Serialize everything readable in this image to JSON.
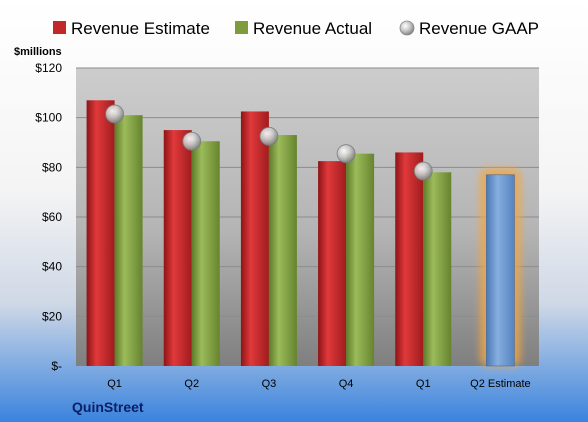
{
  "company": "QuinStreet",
  "colors": {
    "estimate": "#C0282A",
    "actual": "#7E9C3E",
    "gaap": "#B8B8B8",
    "estimate_bar": "#6B97CF",
    "highlight": "#F4A640"
  },
  "chart_data": {
    "type": "bar",
    "ylabel": "$millions",
    "ylim": [
      0,
      120
    ],
    "yticks": [
      {
        "value": 0,
        "label": "$-"
      },
      {
        "value": 20,
        "label": "$20"
      },
      {
        "value": 40,
        "label": "$40"
      },
      {
        "value": 60,
        "label": "$60"
      },
      {
        "value": 80,
        "label": "$80"
      },
      {
        "value": 100,
        "label": "$100"
      },
      {
        "value": 120,
        "label": "$120"
      }
    ],
    "categories": [
      "Q1",
      "Q2",
      "Q3",
      "Q4",
      "Q1",
      "Q2 Estimate"
    ],
    "grid": true,
    "legend_position": "top",
    "series": [
      {
        "name": "Revenue Estimate",
        "kind": "bar",
        "values": [
          107,
          95,
          102.5,
          82.5,
          86,
          null
        ]
      },
      {
        "name": "Revenue Actual",
        "kind": "bar",
        "values": [
          101,
          90.5,
          93,
          85.5,
          78,
          77
        ]
      },
      {
        "name": "Revenue GAAP",
        "kind": "marker",
        "values": [
          101.5,
          90.5,
          92.5,
          85.5,
          78.5,
          null
        ]
      }
    ],
    "highlighted_category": "Q2 Estimate"
  }
}
